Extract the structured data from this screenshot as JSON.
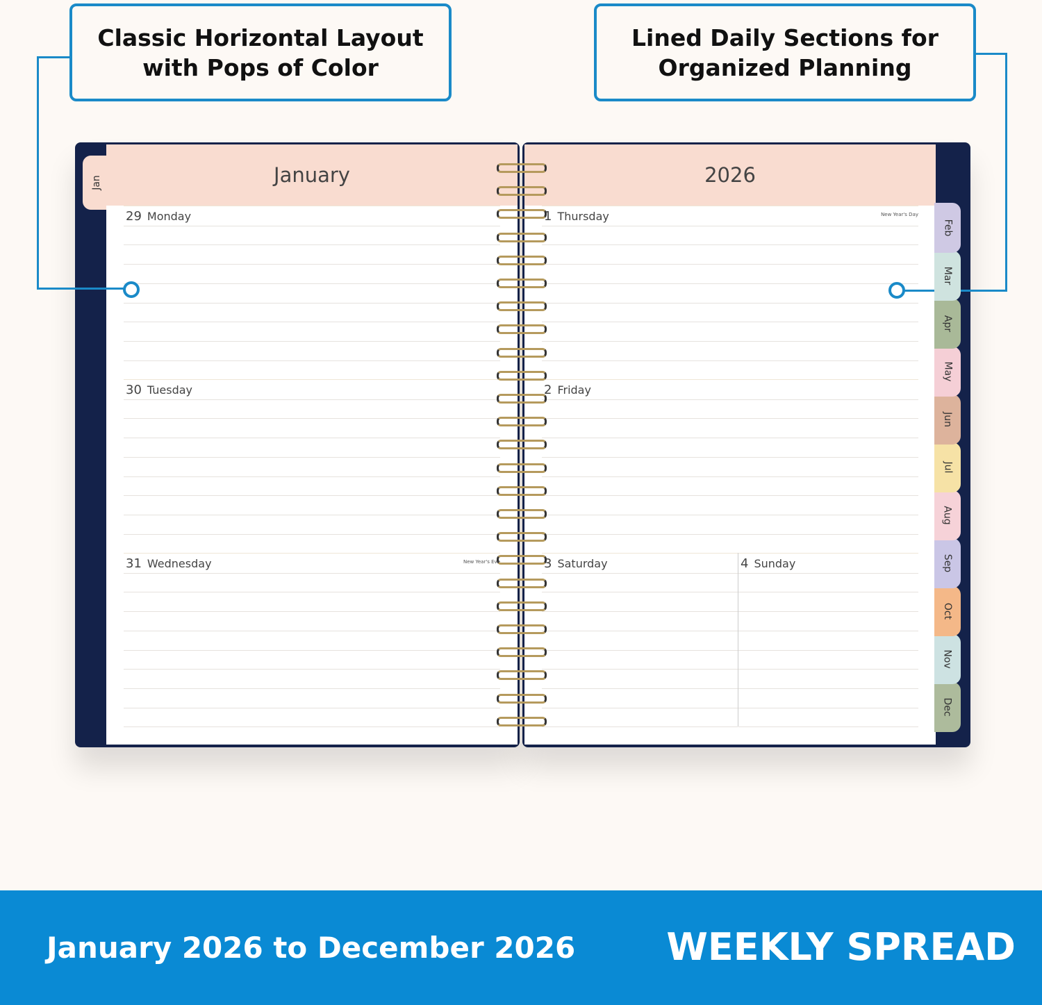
{
  "callouts": {
    "left": "Classic Horizontal Layout with Pops of Color",
    "right": "Lined Daily Sections for Organized Planning"
  },
  "planner": {
    "left_tab": "Jan",
    "left_header": "January",
    "right_header": "2026",
    "left_days": [
      {
        "num": "29",
        "name": "Monday",
        "holiday": ""
      },
      {
        "num": "30",
        "name": "Tuesday",
        "holiday": ""
      },
      {
        "num": "31",
        "name": "Wednesday",
        "holiday": "New Year's Eve"
      }
    ],
    "right_days": [
      {
        "num": "1",
        "name": "Thursday",
        "holiday": "New Year's Day"
      },
      {
        "num": "2",
        "name": "Friday",
        "holiday": ""
      }
    ],
    "weekend": [
      {
        "num": "3",
        "name": "Saturday"
      },
      {
        "num": "4",
        "name": "Sunday"
      }
    ],
    "month_tabs": [
      {
        "label": "Feb",
        "color": "#cfc9e4"
      },
      {
        "label": "Mar",
        "color": "#cfe3df"
      },
      {
        "label": "Apr",
        "color": "#a9b998"
      },
      {
        "label": "May",
        "color": "#f5cfd6"
      },
      {
        "label": "Jun",
        "color": "#ddb39c"
      },
      {
        "label": "Jul",
        "color": "#f6e2a6"
      },
      {
        "label": "Aug",
        "color": "#f6d2d8"
      },
      {
        "label": "Sep",
        "color": "#cac6e6"
      },
      {
        "label": "Oct",
        "color": "#f4b888"
      },
      {
        "label": "Nov",
        "color": "#cde2e2"
      },
      {
        "label": "Dec",
        "color": "#adbb9c"
      }
    ],
    "colors": {
      "cover": "#14224a",
      "header": "#f9dcd0",
      "accent": "#1a8ac8"
    }
  },
  "banner": {
    "date_range": "January 2026 to December 2026",
    "title": "WEEKLY SPREAD",
    "color": "#0a8ad4"
  }
}
